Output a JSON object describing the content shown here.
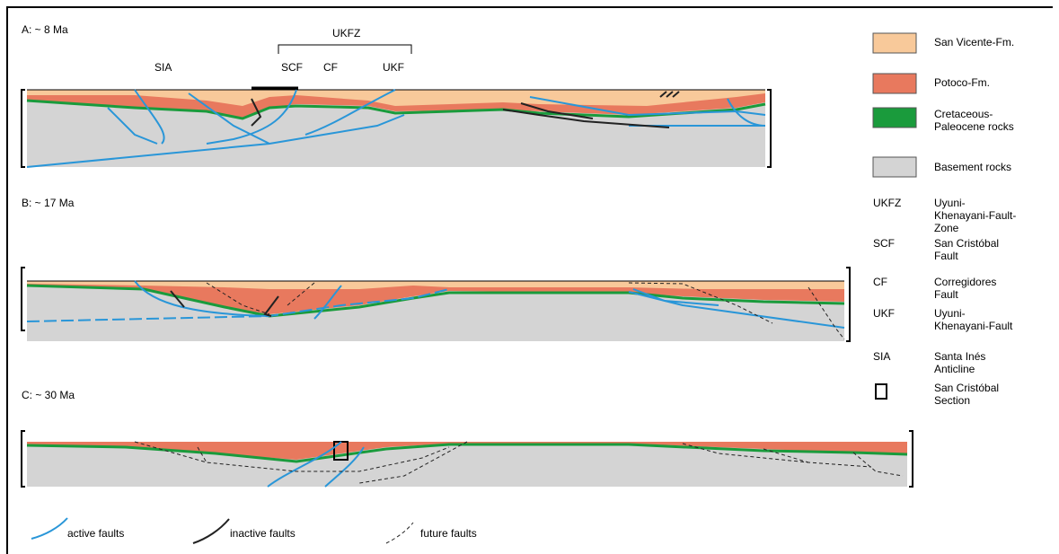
{
  "panels": [
    {
      "label": "A: ~ 8 Ma"
    },
    {
      "label": "B: ~ 17 Ma"
    },
    {
      "label": "C: ~ 30 Ma"
    }
  ],
  "section_labels": {
    "zone": "UKFZ",
    "sia": "SIA",
    "scf": "SCF",
    "cf": "CF",
    "ukf": "UKF"
  },
  "legend": {
    "units": [
      {
        "label": "San Vicente-Fm.",
        "color": "#f8c99a"
      },
      {
        "label": "Potoco-Fm.",
        "color": "#e8795e"
      },
      {
        "label": "Cretaceous-Paleocene rocks",
        "color": "#1a9b3c"
      },
      {
        "label": "Basement rocks",
        "color": "#d4d4d4"
      }
    ],
    "abbreviations": [
      {
        "abbr": "UKFZ",
        "text": "Uyuni-Khenayani-Fault-Zone"
      },
      {
        "abbr": "SCF",
        "text": "San Cristóbal Fault"
      },
      {
        "abbr": "CF",
        "text": "Corregidores Fault"
      },
      {
        "abbr": "UKF",
        "text": "Uyuni-Khenayani-Fault"
      },
      {
        "abbr": "SIA",
        "text": "Santa Inés Anticline"
      }
    ],
    "section_box": "San Cristóbal Section",
    "faults": [
      "active faults",
      "inactive faults",
      "future faults"
    ]
  }
}
